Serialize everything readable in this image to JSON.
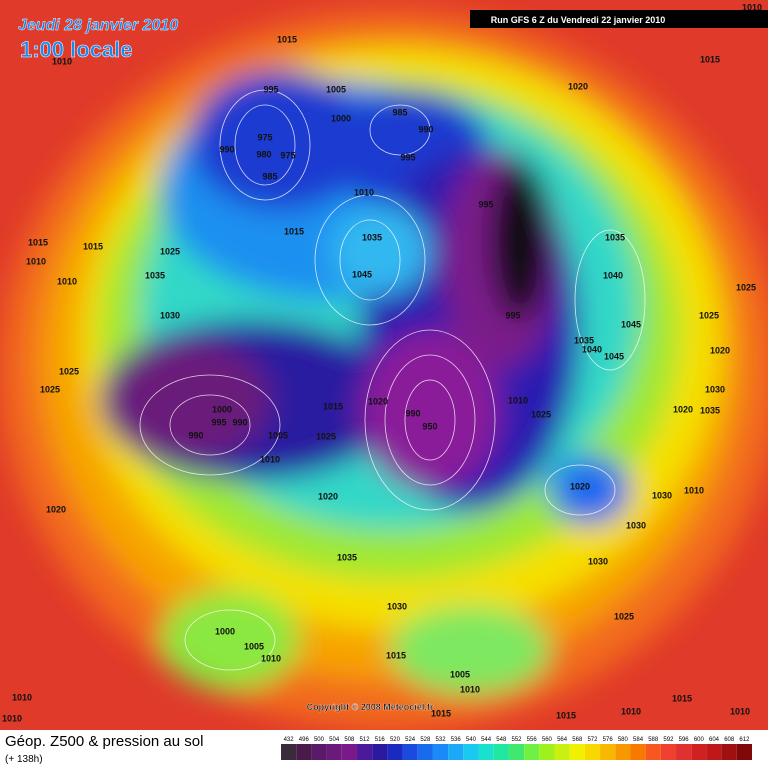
{
  "header": {
    "date": "Jeudi 28 janvier 2010",
    "time": "1:00 locale",
    "run": "Run GFS 6 Z du Vendredi 22 janvier 2010"
  },
  "copyright": "Copyright © 2008 Meteociel.fr",
  "footer": {
    "title": "Géop. Z500 & pression au sol",
    "lead": "(+ 138h)"
  },
  "colorbar": {
    "labels": [
      "432",
      "496",
      "500",
      "504",
      "508",
      "512",
      "516",
      "520",
      "524",
      "528",
      "532",
      "536",
      "540",
      "544",
      "548",
      "552",
      "556",
      "560",
      "564",
      "568",
      "572",
      "576",
      "580",
      "584",
      "588",
      "592",
      "596",
      "600",
      "604",
      "608",
      "612"
    ],
    "colors": [
      "#3a2a3a",
      "#4a1a4a",
      "#5a1a6a",
      "#6a1a7a",
      "#7a1a8a",
      "#4a1a9a",
      "#2a1aa0",
      "#1a2ac0",
      "#1a4ae0",
      "#1a6af0",
      "#1a8af8",
      "#1aaaf8",
      "#1ac8f0",
      "#1ae0d0",
      "#20e8a0",
      "#40e870",
      "#70f040",
      "#a0f020",
      "#c8f010",
      "#f0f000",
      "#f8d800",
      "#f8b800",
      "#f89800",
      "#f87800",
      "#f85820",
      "#f04030",
      "#e03030",
      "#d02020",
      "#c01818",
      "#a01010",
      "#800808"
    ]
  },
  "pressure_labels": [
    "1010",
    "1015",
    "1010",
    "1015",
    "1005",
    "995",
    "1020",
    "985",
    "1000",
    "990",
    "975",
    "990",
    "980",
    "975",
    "995",
    "985",
    "1010",
    "995",
    "1015",
    "1035",
    "1035",
    "1015",
    "1015",
    "1025",
    "1010",
    "1045",
    "1040",
    "1035",
    "1010",
    "1025",
    "995",
    "1030",
    "1025",
    "1045",
    "1035",
    "1020",
    "1040",
    "1045",
    "1025",
    "1025",
    "1030",
    "1010",
    "1020",
    "1015",
    "1000",
    "990",
    "1020",
    "1035",
    "1025",
    "995",
    "990",
    "950",
    "1005",
    "990",
    "1025",
    "1010",
    "1020",
    "1030",
    "1010",
    "1020",
    "1020",
    "1030",
    "1035",
    "1030",
    "1030",
    "1025",
    "1000",
    "1005",
    "1010",
    "1015",
    "1005",
    "1010",
    "1010",
    "1010",
    "1015",
    "1015",
    "1015",
    "1010",
    "1010"
  ]
}
